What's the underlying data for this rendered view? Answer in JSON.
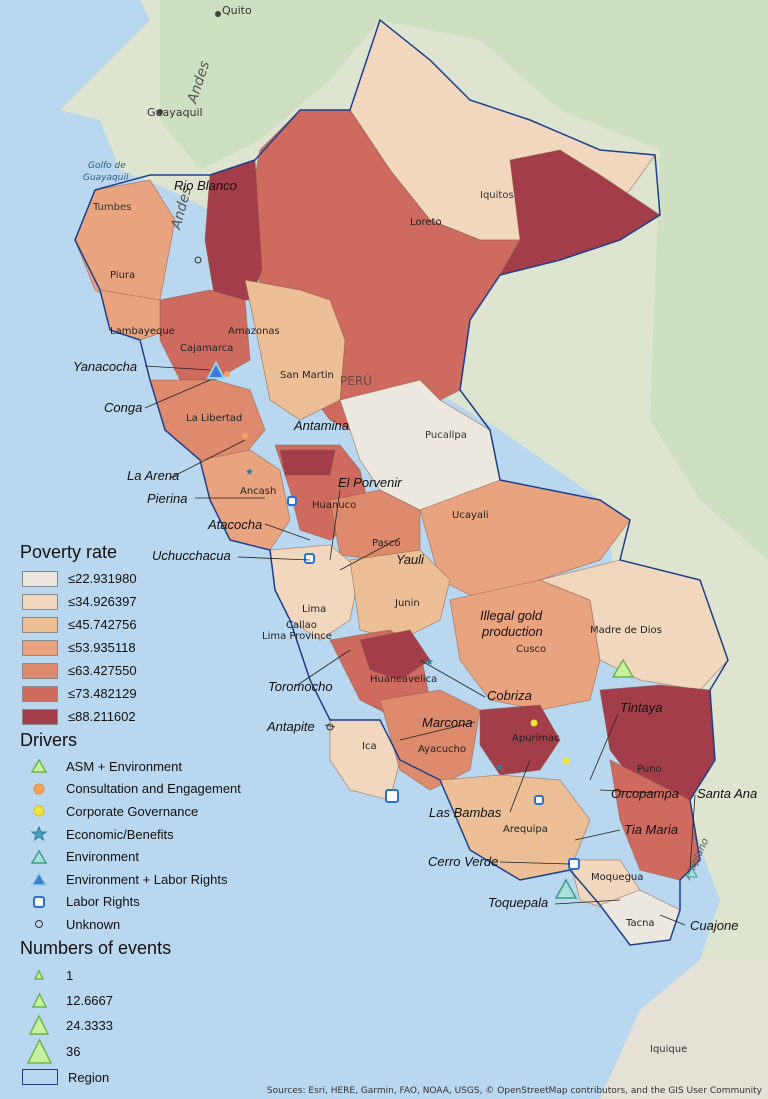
{
  "map": {
    "countries": [
      "Quito",
      "Guayaquil",
      "Tumbes",
      "Iquitos",
      "Pucallpa",
      "Iquique"
    ],
    "gulf": [
      "Golfo de",
      "Guayaquil"
    ],
    "watermarks": [
      "Andes",
      "Andes",
      "PERÚ",
      "Altiplano"
    ],
    "departments": [
      "Loreto",
      "Piura",
      "Lambayeque",
      "Amazonas",
      "Cajamarca",
      "San Martin",
      "La Libertad",
      "Ancash",
      "Huanuco",
      "Pasco",
      "Ucayali",
      "Lima",
      "Callao",
      "Lima Province",
      "Junin",
      "Huancavelica",
      "Ica",
      "Ayacucho",
      "Cusco",
      "Apurimac",
      "Madre de Dios",
      "Puno",
      "Arequipa",
      "Moquegua",
      "Tacna"
    ],
    "mines": [
      "Rio Blanco",
      "Yanacocha",
      "Conga",
      "Antamina",
      "La Arena",
      "El Porvenir",
      "Pierina",
      "Atacocha",
      "Uchucchacua",
      "Yauli",
      "Illegal gold production",
      "Toromocho",
      "Cobriza",
      "Antapite",
      "Marcona",
      "Tintaya",
      "Orcopampa",
      "Santa Ana",
      "Las Bambas",
      "Tia Maria",
      "Cerro Verde",
      "Toquepala",
      "Cuajone"
    ]
  },
  "legend": {
    "poverty_title": "Poverty rate",
    "poverty": [
      {
        "label": "≤22.931980",
        "color": "#ece8df"
      },
      {
        "label": "≤34.926397",
        "color": "#f1d7bd"
      },
      {
        "label": "≤45.742756",
        "color": "#ecbf97"
      },
      {
        "label": "≤53.935118",
        "color": "#e9a47f"
      },
      {
        "label": "≤63.427550",
        "color": "#de8a6d"
      },
      {
        "label": "≤73.482129",
        "color": "#cf6a5f"
      },
      {
        "label": "≤88.211602",
        "color": "#a33d49"
      }
    ],
    "drivers_title": "Drivers",
    "drivers": [
      {
        "label": "ASM + Environment",
        "icon": "triangle-green-icon"
      },
      {
        "label": "Consultation and Engagement",
        "icon": "circle-orange-icon"
      },
      {
        "label": "Corporate Governance",
        "icon": "circle-yellow-icon"
      },
      {
        "label": "Economic/Benefits",
        "icon": "star-teal-icon"
      },
      {
        "label": "Environment",
        "icon": "triangle-teal-icon"
      },
      {
        "label": "Environment + Labor Rights",
        "icon": "triangle-blue-icon"
      },
      {
        "label": "Labor Rights",
        "icon": "square-blue-icon"
      },
      {
        "label": "Unknown",
        "icon": "circle-hollow-icon"
      }
    ],
    "events_title": "Numbers of events",
    "events": [
      {
        "label": "1"
      },
      {
        "label": "12.6667"
      },
      {
        "label": "24.3333"
      },
      {
        "label": "36"
      }
    ],
    "region_label": "Region"
  },
  "credits": "Sources: Esri, HERE, Garmin, FAO, NOAA, USGS, © OpenStreetMap contributors, and the GIS User Community"
}
